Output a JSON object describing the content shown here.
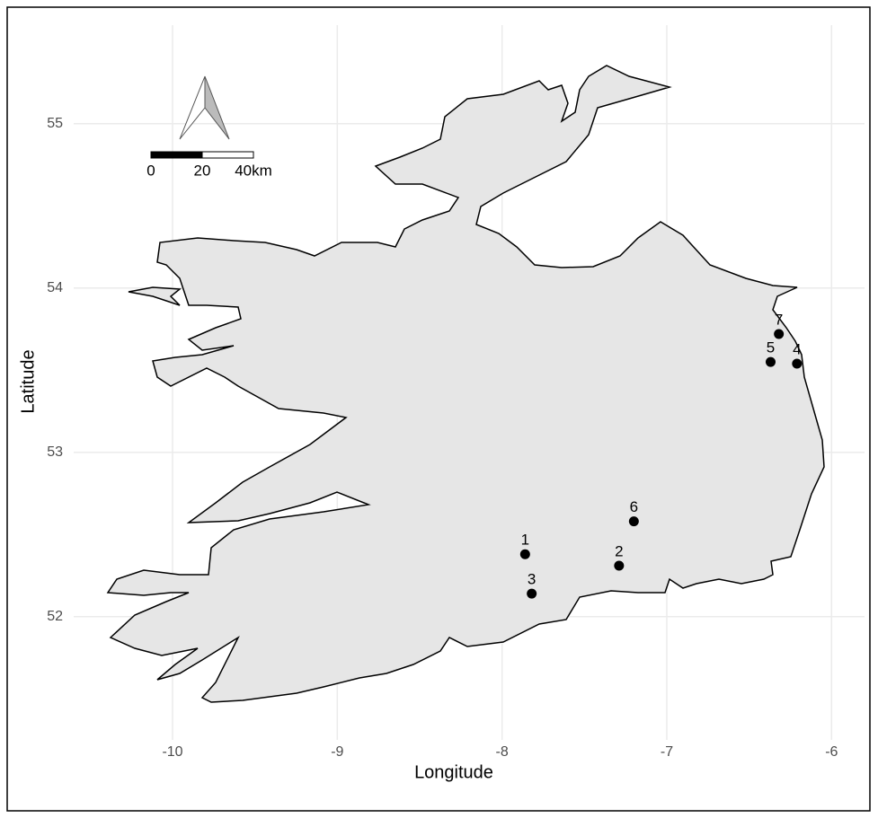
{
  "chart_data": {
    "type": "scatter",
    "x_label": "Longitude",
    "y_label": "Latitude",
    "x": [
      -7.86,
      -7.29,
      -7.82,
      -6.21,
      -6.37,
      -7.2,
      -6.32
    ],
    "labels": [
      "1",
      "2",
      "3",
      "4",
      "5",
      "6",
      "7"
    ],
    "series": [
      {
        "color": "#000000",
        "values": [
          52.38,
          52.31,
          52.14,
          53.54,
          53.55,
          52.58,
          53.72
        ]
      }
    ],
    "xlim": [
      -10.6,
      -5.8
    ],
    "xticks": [
      -10,
      -9,
      -8,
      -7,
      -6
    ],
    "ylim": [
      51.25,
      55.6
    ],
    "yticks": [
      52,
      53,
      54,
      55
    ],
    "grid": true,
    "scale_bar": {
      "labels": [
        "0",
        "20",
        "40km"
      ]
    }
  }
}
